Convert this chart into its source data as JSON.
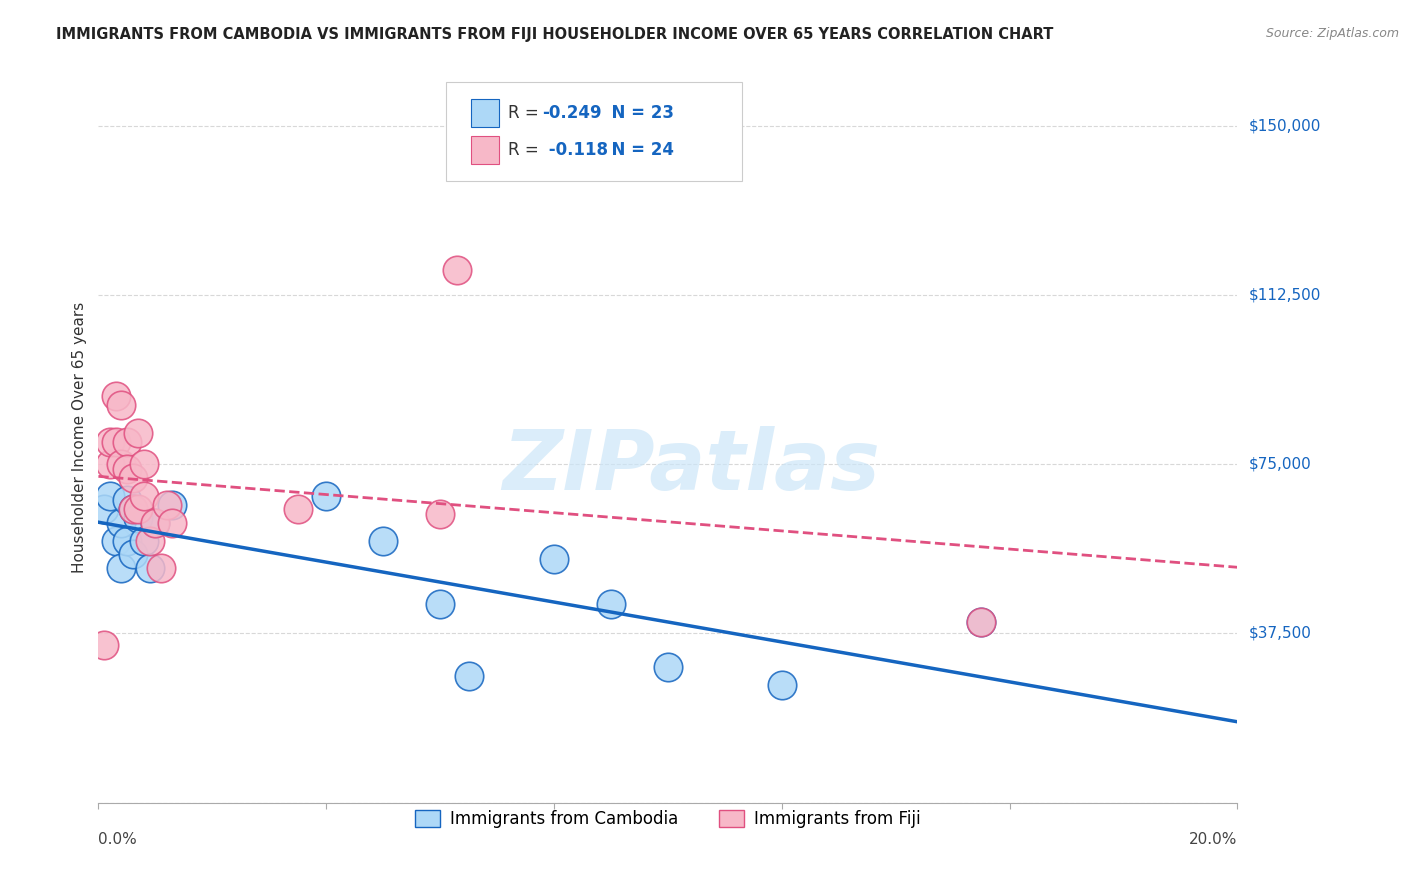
{
  "title": "IMMIGRANTS FROM CAMBODIA VS IMMIGRANTS FROM FIJI HOUSEHOLDER INCOME OVER 65 YEARS CORRELATION CHART",
  "source": "Source: ZipAtlas.com",
  "ylabel": "Householder Income Over 65 years",
  "watermark": "ZIPatlas",
  "yticks": [
    0,
    37500,
    75000,
    112500,
    150000
  ],
  "ytick_labels": [
    "",
    "$37,500",
    "$75,000",
    "$112,500",
    "$150,000"
  ],
  "xlim": [
    0.0,
    0.2
  ],
  "ylim": [
    0,
    162000
  ],
  "color_cambodia": "#add8f7",
  "color_fiji": "#f7b8c8",
  "line_color_cambodia": "#1565c0",
  "line_color_fiji": "#e05080",
  "background_color": "#ffffff",
  "grid_color": "#d8d8d8",
  "scatter_cambodia_x": [
    0.001,
    0.002,
    0.003,
    0.004,
    0.004,
    0.005,
    0.005,
    0.006,
    0.006,
    0.007,
    0.008,
    0.009,
    0.01,
    0.013,
    0.04,
    0.05,
    0.06,
    0.065,
    0.08,
    0.09,
    0.1,
    0.12,
    0.155
  ],
  "scatter_cambodia_y": [
    65000,
    68000,
    58000,
    62000,
    52000,
    67000,
    58000,
    65000,
    55000,
    63000,
    58000,
    52000,
    62000,
    66000,
    68000,
    58000,
    44000,
    28000,
    54000,
    44000,
    30000,
    26000,
    40000
  ],
  "scatter_fiji_x": [
    0.001,
    0.002,
    0.002,
    0.003,
    0.003,
    0.004,
    0.004,
    0.005,
    0.005,
    0.006,
    0.006,
    0.007,
    0.007,
    0.008,
    0.008,
    0.009,
    0.01,
    0.011,
    0.012,
    0.013,
    0.035,
    0.06,
    0.063,
    0.155
  ],
  "scatter_fiji_y": [
    35000,
    75000,
    80000,
    80000,
    90000,
    75000,
    88000,
    80000,
    74000,
    72000,
    65000,
    82000,
    65000,
    75000,
    68000,
    58000,
    62000,
    52000,
    66000,
    62000,
    65000,
    64000,
    118000,
    40000
  ]
}
